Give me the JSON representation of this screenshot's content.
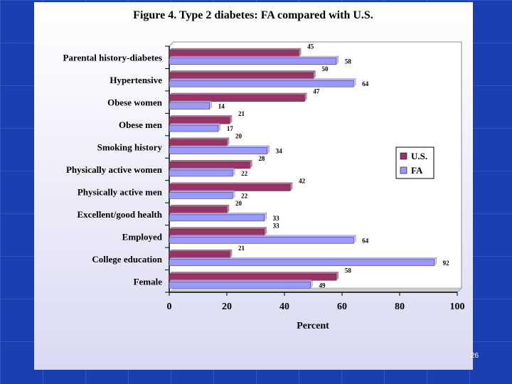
{
  "slide": {
    "number": "26"
  },
  "colors": {
    "us": "#993366",
    "fa": "#9999ff",
    "background": "#1a3fb3"
  },
  "chart_data": {
    "type": "bar",
    "orientation": "horizontal",
    "title": "Figure 4. Type 2 diabetes: FA compared with U.S.",
    "xlabel": "Percent",
    "ylabel": "",
    "xlim": [
      0,
      100
    ],
    "xticks": [
      "0",
      "20",
      "40",
      "60",
      "80",
      "100"
    ],
    "categories": [
      "Parental history-diabetes",
      "Hypertensive",
      "Obese women",
      "Obese men",
      "Smoking history",
      "Physically active women",
      "Physically active men",
      "Excellent/good health",
      "Employed",
      "College education",
      "Female"
    ],
    "series": [
      {
        "name": "U.S.",
        "values": [
          45,
          50,
          47,
          21,
          20,
          28,
          42,
          20,
          33,
          21,
          58
        ]
      },
      {
        "name": "FA",
        "values": [
          58,
          64,
          14,
          17,
          34,
          22,
          22,
          33,
          64,
          92,
          49
        ]
      }
    ],
    "grid": false,
    "legend_position": "right"
  }
}
